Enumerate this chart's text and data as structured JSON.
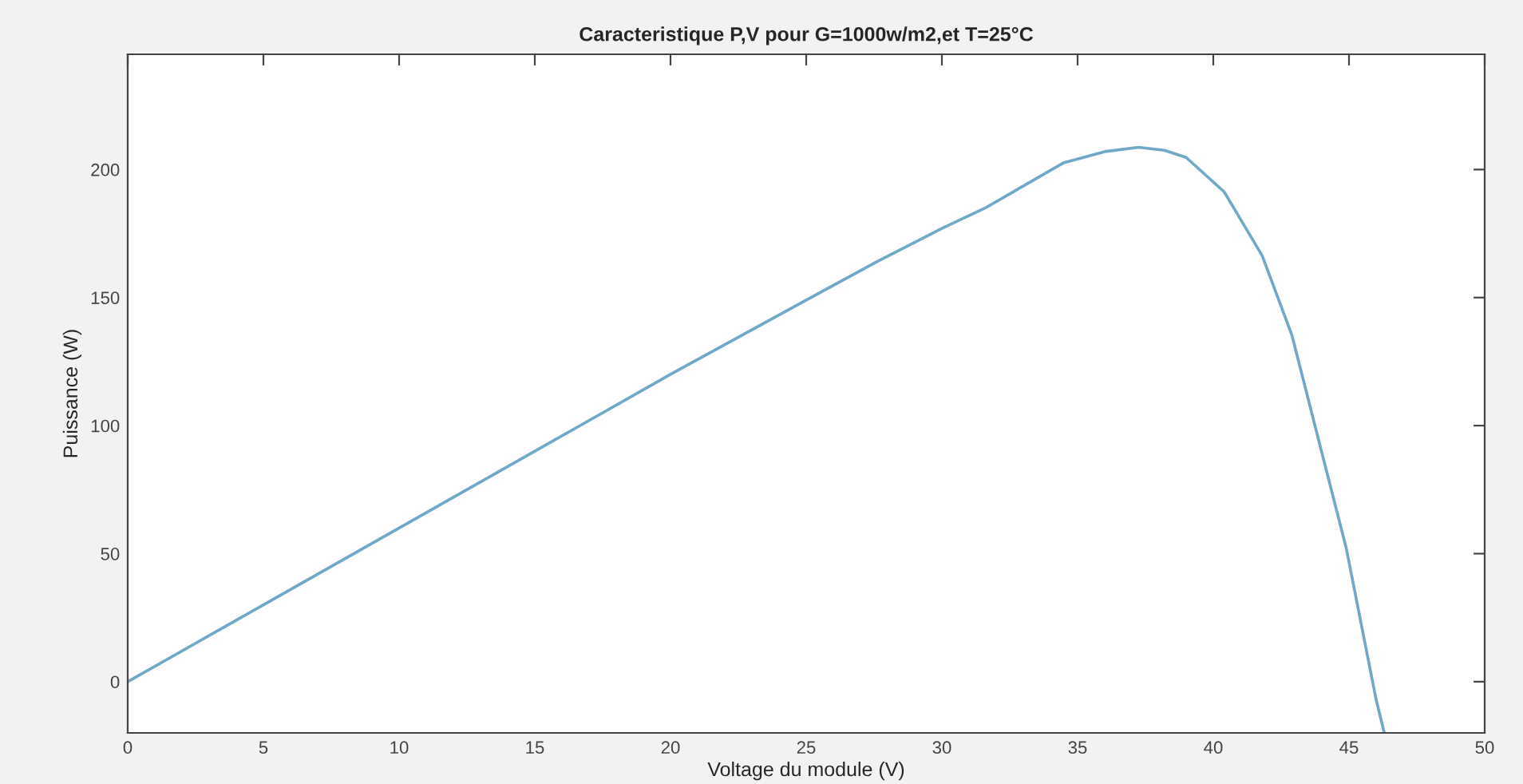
{
  "chart_data": {
    "type": "line",
    "title": "Caracteristique P,V pour G=1000w/m2,et T=25°C",
    "xlabel": "Voltage du module (V)",
    "ylabel": "Puissance (W)",
    "series": [
      {
        "color": "#6fa8c8",
        "x": [
          0,
          5,
          10,
          15,
          20,
          25,
          27.6,
          30,
          31.6,
          34.5,
          36,
          37.25,
          38.2,
          39.0,
          40.4,
          41.8,
          42.9,
          43.9,
          44.9,
          46.0,
          46.3
        ],
        "values": [
          0,
          30,
          60,
          90,
          120,
          149,
          164,
          177,
          185,
          202.7,
          207,
          208.7,
          207.5,
          204.7,
          191.3,
          166.4,
          135.2,
          93.6,
          52.1,
          -7,
          -20
        ]
      }
    ],
    "xlim": [
      0,
      50
    ],
    "xticks": [
      0,
      5,
      10,
      15,
      20,
      25,
      30,
      35,
      40,
      45,
      50
    ],
    "ylim": [
      -20,
      245
    ],
    "yticks": [
      0,
      50,
      100,
      150,
      200
    ],
    "grid": false,
    "legend": false,
    "marker": "none",
    "line_style": "solid"
  }
}
